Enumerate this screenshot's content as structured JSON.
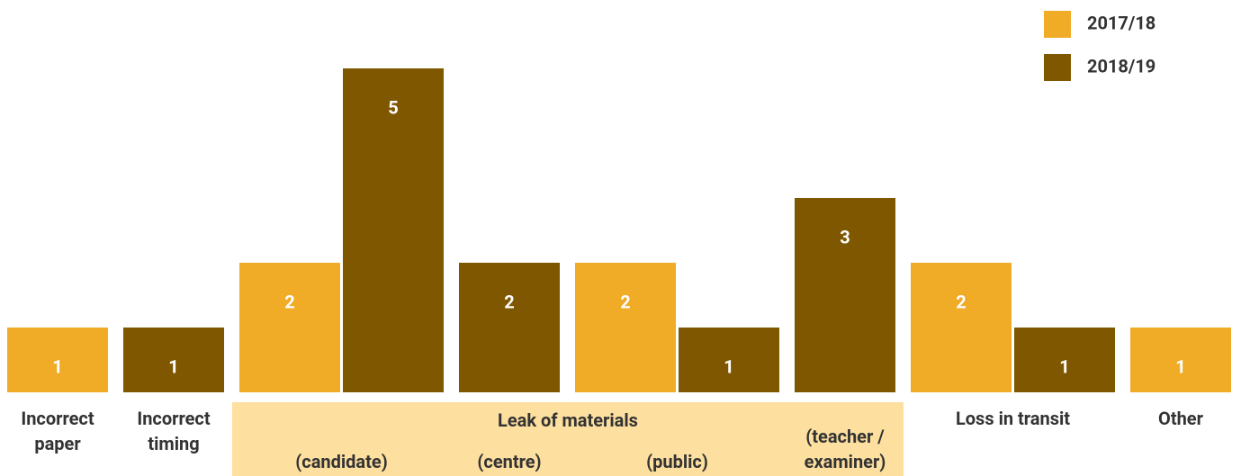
{
  "chart_data": {
    "type": "bar",
    "categories": [
      "Incorrect paper",
      "Incorrect timing",
      "(candidate)",
      "(centre)",
      "(public)",
      "(teacher / examiner)",
      "Loss in transit",
      "Other"
    ],
    "category_group": {
      "label": "Leak of materials",
      "span": [
        2,
        5
      ]
    },
    "series": [
      {
        "name": "2017/18",
        "color": "#F0AB27",
        "values": [
          1,
          null,
          2,
          null,
          2,
          null,
          2,
          1
        ]
      },
      {
        "name": "2018/19",
        "color": "#7F5700",
        "values": [
          null,
          1,
          5,
          2,
          1,
          3,
          1,
          null
        ]
      }
    ],
    "ylim": [
      0,
      5.5
    ],
    "legend": "top-right",
    "group_band_color": "#FDDF9F"
  }
}
